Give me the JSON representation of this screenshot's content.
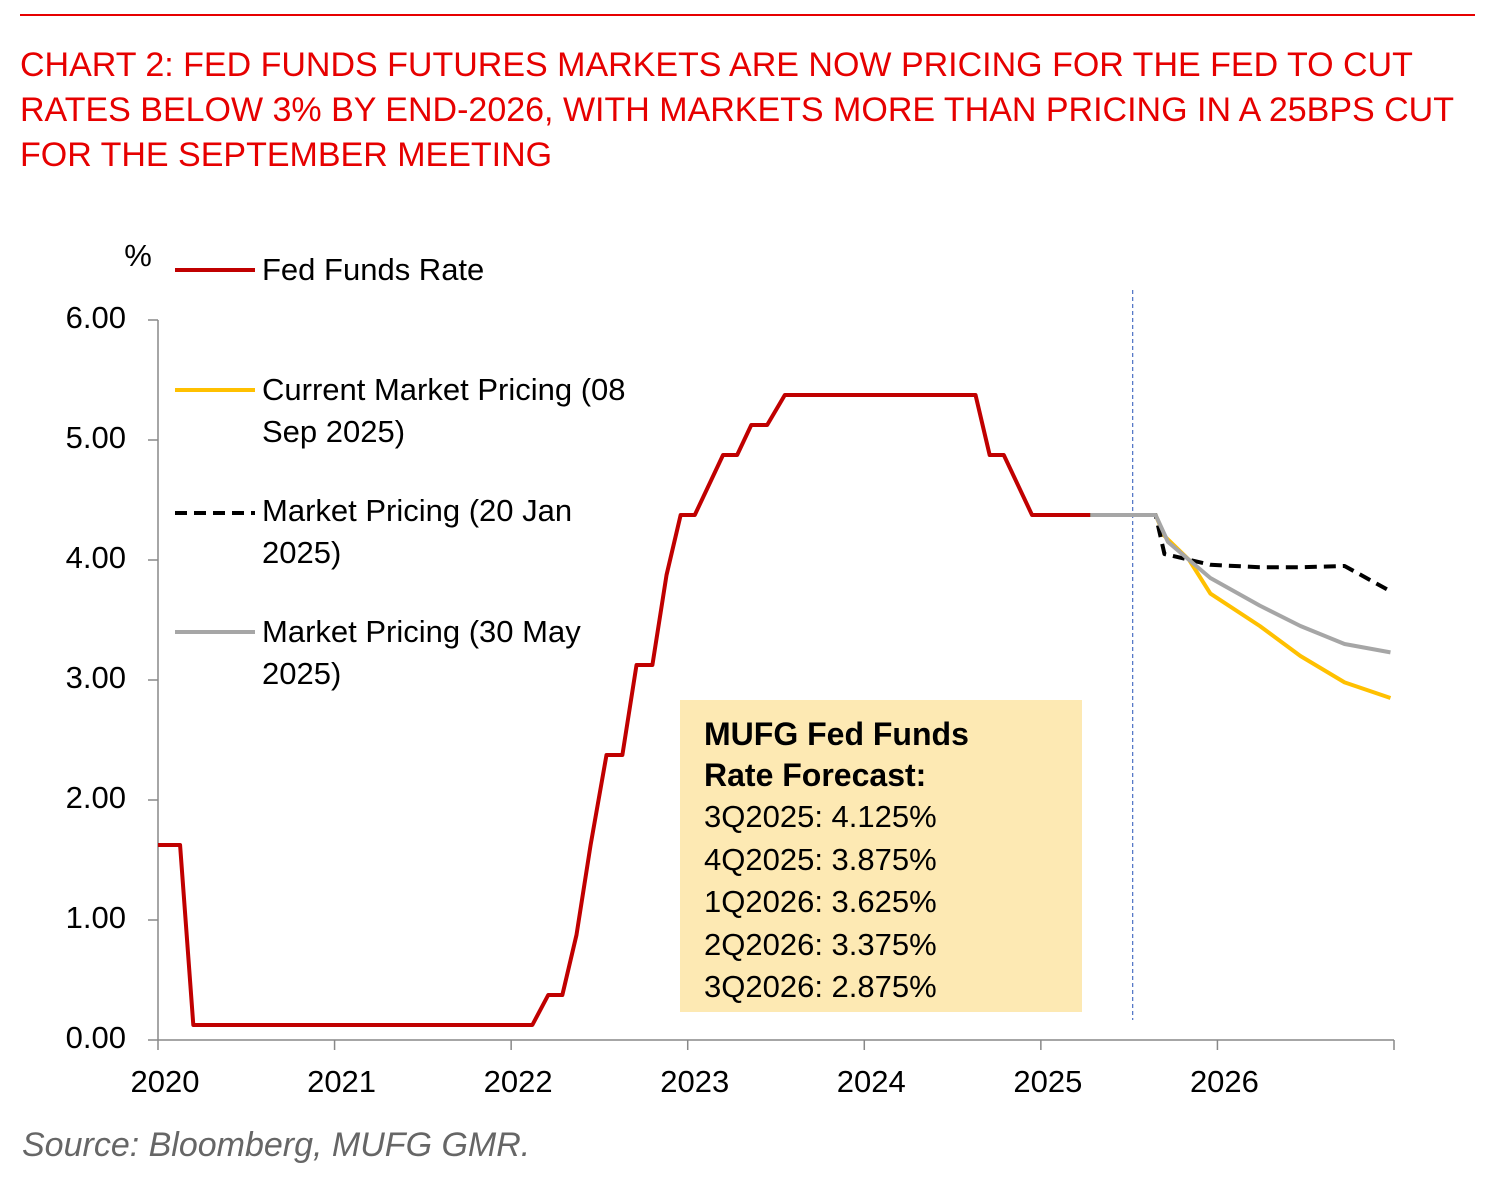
{
  "chart_data": {
    "type": "line",
    "title": "CHART 2: FED FUNDS FUTURES MARKETS ARE NOW PRICING FOR THE FED TO CUT RATES BELOW 3% BY END-2026, WITH MARKETS MORE THAN PRICING IN A 25BPS CUT FOR THE SEPTEMBER MEETING",
    "y_label": "%",
    "source": "Source: Bloomberg, MUFG GMR.",
    "xlim": [
      2020,
      2027
    ],
    "xticks": [
      2020,
      2021,
      2022,
      2023,
      2024,
      2025,
      2026
    ],
    "ylim": [
      0,
      6
    ],
    "yticks": [
      {
        "value": 0,
        "label": "0.00"
      },
      {
        "value": 1,
        "label": "1.00"
      },
      {
        "value": 2,
        "label": "2.00"
      },
      {
        "value": 3,
        "label": "3.00"
      },
      {
        "value": 4,
        "label": "4.00"
      },
      {
        "value": 5,
        "label": "5.00"
      },
      {
        "value": 6,
        "label": "6.00"
      }
    ],
    "reference_line_x": 2025.52,
    "series": [
      {
        "name": "Fed Funds Rate",
        "color": "#c00000",
        "dash": false,
        "x": [
          2020.0,
          2020.125,
          2020.2,
          2022.12,
          2022.21,
          2022.29,
          2022.37,
          2022.45,
          2022.54,
          2022.63,
          2022.71,
          2022.8,
          2022.88,
          2022.96,
          2023.04,
          2023.2,
          2023.28,
          2023.36,
          2023.45,
          2023.55,
          2024.63,
          2024.71,
          2024.79,
          2024.95,
          2025.31
        ],
        "values": [
          1.625,
          1.625,
          0.125,
          0.125,
          0.375,
          0.375,
          0.875,
          1.625,
          2.375,
          2.375,
          3.125,
          3.125,
          3.875,
          4.375,
          4.375,
          4.875,
          4.875,
          5.125,
          5.125,
          5.375,
          5.375,
          4.875,
          4.875,
          4.375,
          4.375
        ]
      },
      {
        "name": "Current Market Pricing (08 Sep 2025)",
        "color": "#ffc000",
        "dash": false,
        "x": [
          2025.28,
          2025.65,
          2025.7,
          2025.84,
          2025.96,
          2026.24,
          2026.47,
          2026.72,
          2026.98
        ],
        "values": [
          4.375,
          4.375,
          4.2,
          4.0,
          3.72,
          3.45,
          3.2,
          2.98,
          2.85
        ]
      },
      {
        "name": "Market Pricing (20 Jan 2025)",
        "color": "#000000",
        "dash": true,
        "x": [
          2025.28,
          2025.65,
          2025.7,
          2025.96,
          2026.24,
          2026.47,
          2026.72,
          2026.98
        ],
        "values": [
          4.375,
          4.375,
          4.05,
          3.96,
          3.94,
          3.94,
          3.95,
          3.74
        ]
      },
      {
        "name": "Market Pricing (30 May 2025)",
        "color": "#a6a6a6",
        "dash": false,
        "x": [
          2025.28,
          2025.65,
          2025.72,
          2025.96,
          2026.24,
          2026.47,
          2026.72,
          2026.98
        ],
        "values": [
          4.375,
          4.375,
          4.15,
          3.85,
          3.62,
          3.45,
          3.3,
          3.23
        ]
      }
    ],
    "annotation": {
      "title": "MUFG Fed Funds Rate Forecast:",
      "lines": [
        "3Q2025: 4.125%",
        "4Q2025: 3.875%",
        "1Q2026: 3.625%",
        "2Q2026: 3.375%",
        "3Q2026: 2.875%"
      ]
    }
  }
}
